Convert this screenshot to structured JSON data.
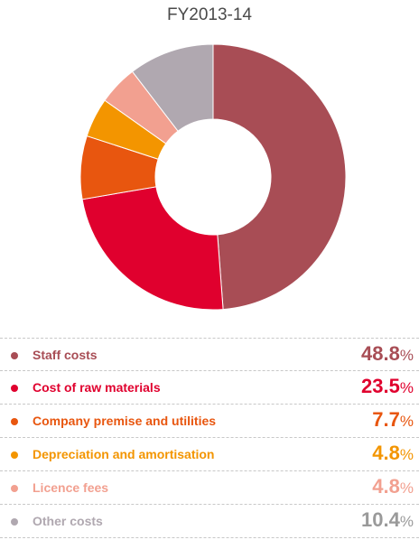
{
  "chart_data": {
    "type": "pie",
    "title": "FY2013-14",
    "unit": "%",
    "slices": [
      {
        "label": "Staff costs",
        "value": 48.8,
        "value_text": "48.8",
        "color": "#a84d55"
      },
      {
        "label": "Cost of raw materials",
        "value": 23.5,
        "value_text": "23.5",
        "color": "#e0002e"
      },
      {
        "label": "Company premise and utilities",
        "value": 7.7,
        "value_text": "7.7",
        "color": "#e8560f"
      },
      {
        "label": "Depreciation and amortisation",
        "value": 4.8,
        "value_text": "4.8",
        "color": "#f39500"
      },
      {
        "label": "Licence fees",
        "value": 4.8,
        "value_text": "4.8",
        "color": "#f2a090"
      },
      {
        "label": "Other costs",
        "value": 10.4,
        "value_text": "10.4",
        "color": "#b0a8b0"
      }
    ],
    "value_colors": [
      "#a84d55",
      "#e0002e",
      "#e8560f",
      "#f39500",
      "#f2a090",
      "#9a9a9a"
    ]
  }
}
